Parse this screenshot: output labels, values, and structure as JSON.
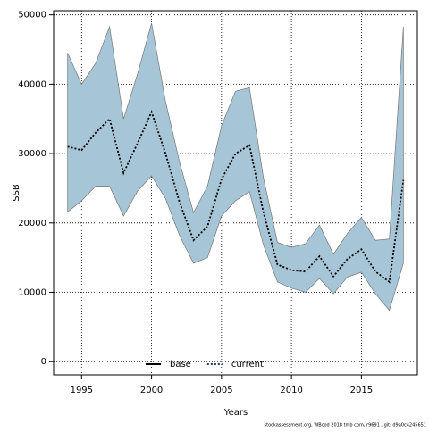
{
  "chart_data": {
    "type": "line",
    "x_label": "Years",
    "y_label": "SSB",
    "footer": "stockassessment.org, WBcod 2018 tmb com, r9691 , git: d9a0c4245651",
    "x": [
      1994,
      1995,
      1996,
      1997,
      1998,
      1999,
      2000,
      2001,
      2002,
      2003,
      2004,
      2005,
      2006,
      2007,
      2008,
      2009,
      2010,
      2011,
      2012,
      2013,
      2014,
      2015,
      2016,
      2017,
      2018
    ],
    "series": [
      {
        "name": "current",
        "color": "#000000",
        "dash": "dotted",
        "values": [
          31000,
          30500,
          33000,
          35000,
          27200,
          31500,
          36000,
          30000,
          23000,
          17500,
          19500,
          26300,
          30000,
          31200,
          21500,
          14000,
          13200,
          13000,
          15200,
          12300,
          14800,
          16200,
          13000,
          11500,
          26200
        ]
      }
    ],
    "band": {
      "color": "#a6c5d6",
      "upper": [
        44500,
        40000,
        43000,
        48300,
        35000,
        41500,
        48800,
        37500,
        28800,
        21500,
        25300,
        34000,
        39000,
        39500,
        26500,
        17200,
        16500,
        17000,
        19700,
        15500,
        18500,
        20800,
        17500,
        17700,
        48300
      ],
      "lower": [
        21600,
        23200,
        25300,
        25300,
        21000,
        24600,
        26800,
        23500,
        18200,
        14200,
        15000,
        21000,
        23200,
        24500,
        16800,
        11500,
        10600,
        10000,
        12000,
        9800,
        12200,
        12900,
        9800,
        7400,
        14200
      ]
    },
    "legend": [
      {
        "name": "base",
        "color": "#000000",
        "dash": "solid"
      },
      {
        "name": "current",
        "color": "#1f3b73",
        "dash": "dotted"
      }
    ],
    "legend_position": "bottom",
    "xlim": [
      1993,
      2019
    ],
    "ylim": [
      -1900,
      50600
    ],
    "xticks": [
      1995,
      2000,
      2005,
      2010,
      2015
    ],
    "yticks": [
      0,
      10000,
      20000,
      30000,
      40000,
      50000
    ],
    "grid": true
  }
}
